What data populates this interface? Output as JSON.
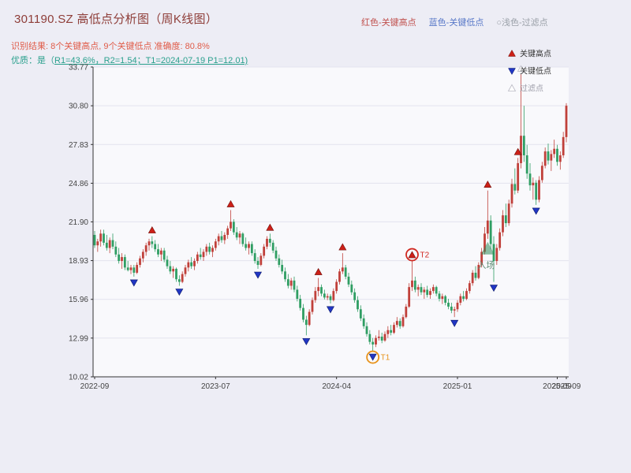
{
  "title": "301190.SZ 高低点分析图（周K线图）",
  "header_legend": [
    {
      "label": "红色-关键高点",
      "color": "#c0504d"
    },
    {
      "label": "蓝色-关键低点",
      "color": "#5878c8"
    },
    {
      "label": "○浅色-过滤点",
      "color": "#9aa0a8"
    }
  ],
  "subtitle1": "识别结果: 8个关键高点, 9个关键低点  准确度: 80.8%",
  "subtitle2_prefix": "优质：是（",
  "subtitle2_rest": "R1=43.6%，R2=1.54；T1=2024-07-19 P1=12.01)",
  "colors": {
    "title": "#8e3d38",
    "subtitle1": "#e05c49",
    "subtitle2": "#2aa08d",
    "background": "#ededf5",
    "plot_bg": "#f9f9fc",
    "axis": "#333333",
    "grid": "#e3e3ee",
    "tick_text": "#444444",
    "up": "#c0403a",
    "down": "#2f9e63"
  },
  "chart_data": {
    "type": "candlestick",
    "title": "301190.SZ 高低点分析图（周K线图）",
    "ylim": [
      10.02,
      33.77
    ],
    "y_ticks": [
      "33.77",
      "30.80",
      "27.83",
      "24.86",
      "21.90",
      "18.93",
      "15.96",
      "12.99",
      "10.02"
    ],
    "x_ticks": [
      {
        "label": "2022-09",
        "index": 0
      },
      {
        "label": "2023-07",
        "index": 40
      },
      {
        "label": "2024-04",
        "index": 80
      },
      {
        "label": "2025-01",
        "index": 120
      },
      {
        "label": "2025-09",
        "index": 153
      },
      {
        "label": "2025-09",
        "index": 156
      }
    ],
    "marker_colors": {
      "high": "#cc2018",
      "low": "#2136c4",
      "filtered": "#ffffff",
      "filtered_border": "#b9b9c4"
    },
    "legend": {
      "items": [
        {
          "label": "关键高点",
          "marker": "triangle-up",
          "color": "#cc2018",
          "text_color": "#333333"
        },
        {
          "label": "关键低点",
          "marker": "triangle-down",
          "color": "#2136c4",
          "text_color": "#333333"
        },
        {
          "label": "过滤点",
          "marker": "triangle-up-hollow",
          "color": "#ffffff",
          "border": "#b9b9c4",
          "text_color": "#a0a0ab"
        }
      ]
    },
    "candles": [
      [
        20.9,
        21.2,
        19.9,
        20.1
      ],
      [
        20.1,
        20.6,
        19.6,
        20.4
      ],
      [
        20.4,
        21.3,
        20.0,
        21.0
      ],
      [
        21.0,
        21.3,
        20.1,
        20.3
      ],
      [
        20.3,
        20.9,
        19.7,
        19.9
      ],
      [
        19.9,
        20.7,
        19.5,
        20.5
      ],
      [
        20.5,
        21.0,
        19.8,
        20.0
      ],
      [
        20.0,
        20.4,
        19.2,
        19.4
      ],
      [
        19.4,
        19.9,
        18.7,
        18.9
      ],
      [
        18.9,
        19.5,
        18.3,
        19.2
      ],
      [
        19.2,
        19.4,
        18.2,
        18.4
      ],
      [
        18.4,
        18.9,
        18.1,
        18.2
      ],
      [
        18.2,
        18.6,
        17.9,
        18.4
      ],
      [
        18.4,
        18.6,
        17.7,
        18.0
      ],
      [
        18.0,
        18.8,
        17.9,
        18.6
      ],
      [
        18.6,
        19.3,
        18.4,
        19.1
      ],
      [
        19.1,
        19.8,
        18.8,
        19.6
      ],
      [
        19.6,
        20.3,
        19.3,
        20.1
      ],
      [
        20.1,
        20.6,
        19.7,
        20.4
      ],
      [
        20.4,
        20.8,
        19.9,
        20.2
      ],
      [
        20.2,
        20.5,
        19.6,
        19.8
      ],
      [
        19.8,
        20.2,
        19.2,
        19.4
      ],
      [
        19.4,
        19.9,
        18.9,
        19.7
      ],
      [
        19.7,
        19.9,
        18.8,
        19.0
      ],
      [
        19.0,
        19.3,
        18.3,
        18.5
      ],
      [
        18.5,
        18.9,
        17.9,
        18.1
      ],
      [
        18.1,
        18.5,
        17.6,
        18.3
      ],
      [
        18.3,
        18.4,
        17.3,
        17.5
      ],
      [
        17.5,
        17.8,
        17.0,
        17.3
      ],
      [
        17.3,
        18.1,
        17.2,
        17.9
      ],
      [
        17.9,
        18.6,
        17.7,
        18.4
      ],
      [
        18.4,
        19.0,
        18.1,
        18.8
      ],
      [
        18.8,
        19.2,
        18.3,
        18.5
      ],
      [
        18.5,
        19.1,
        18.2,
        18.9
      ],
      [
        18.9,
        19.6,
        18.7,
        19.4
      ],
      [
        19.4,
        19.9,
        19.0,
        19.2
      ],
      [
        19.2,
        19.8,
        18.9,
        19.6
      ],
      [
        19.6,
        20.2,
        19.3,
        20.0
      ],
      [
        20.0,
        20.3,
        19.4,
        19.6
      ],
      [
        19.6,
        20.1,
        19.2,
        19.9
      ],
      [
        19.9,
        20.6,
        19.7,
        20.4
      ],
      [
        20.4,
        21.0,
        20.1,
        20.8
      ],
      [
        20.8,
        21.2,
        20.3,
        20.5
      ],
      [
        20.5,
        21.1,
        20.2,
        20.9
      ],
      [
        20.9,
        21.6,
        20.6,
        21.4
      ],
      [
        21.4,
        22.8,
        21.2,
        21.9
      ],
      [
        21.9,
        22.1,
        20.9,
        21.1
      ],
      [
        21.1,
        21.5,
        20.5,
        20.7
      ],
      [
        20.7,
        21.2,
        20.2,
        21.0
      ],
      [
        21.0,
        21.1,
        20.0,
        20.2
      ],
      [
        20.2,
        20.7,
        19.7,
        19.9
      ],
      [
        19.9,
        20.4,
        19.4,
        20.2
      ],
      [
        20.2,
        20.4,
        19.3,
        19.5
      ],
      [
        19.5,
        19.8,
        18.7,
        18.9
      ],
      [
        18.9,
        19.2,
        18.3,
        18.6
      ],
      [
        18.6,
        19.5,
        18.5,
        19.3
      ],
      [
        19.3,
        20.2,
        19.1,
        20.0
      ],
      [
        20.0,
        20.8,
        19.8,
        20.6
      ],
      [
        20.6,
        21.0,
        20.0,
        20.3
      ],
      [
        20.3,
        20.5,
        19.5,
        19.7
      ],
      [
        19.7,
        20.0,
        18.9,
        19.1
      ],
      [
        19.1,
        19.4,
        18.4,
        18.6
      ],
      [
        18.6,
        19.0,
        17.9,
        18.1
      ],
      [
        18.1,
        18.4,
        17.3,
        17.5
      ],
      [
        17.5,
        17.9,
        16.8,
        17.0
      ],
      [
        17.0,
        17.6,
        16.7,
        17.4
      ],
      [
        17.4,
        17.7,
        16.5,
        16.7
      ],
      [
        16.7,
        17.0,
        15.8,
        16.0
      ],
      [
        16.0,
        16.3,
        15.1,
        15.3
      ],
      [
        15.3,
        15.6,
        14.2,
        14.4
      ],
      [
        14.4,
        14.7,
        13.2,
        14.0
      ],
      [
        14.0,
        15.2,
        13.9,
        15.0
      ],
      [
        15.0,
        16.1,
        14.8,
        15.9
      ],
      [
        15.9,
        16.9,
        15.7,
        16.6
      ],
      [
        16.6,
        17.6,
        16.2,
        16.9
      ],
      [
        16.9,
        17.1,
        16.2,
        16.4
      ],
      [
        16.4,
        16.7,
        15.95,
        16.1
      ],
      [
        16.1,
        16.4,
        15.9,
        16.2
      ],
      [
        16.2,
        16.35,
        15.65,
        15.9
      ],
      [
        15.9,
        16.8,
        15.8,
        16.6
      ],
      [
        16.6,
        17.5,
        16.4,
        17.3
      ],
      [
        17.3,
        18.3,
        17.1,
        18.1
      ],
      [
        18.1,
        19.5,
        17.9,
        18.4
      ],
      [
        18.4,
        18.6,
        17.5,
        17.7
      ],
      [
        17.7,
        18.0,
        16.9,
        17.1
      ],
      [
        17.1,
        17.4,
        16.3,
        16.5
      ],
      [
        16.5,
        16.8,
        15.7,
        15.9
      ],
      [
        15.9,
        16.2,
        15.0,
        15.2
      ],
      [
        15.2,
        15.5,
        14.3,
        14.5
      ],
      [
        14.5,
        14.8,
        13.7,
        13.9
      ],
      [
        13.9,
        14.2,
        13.1,
        13.3
      ],
      [
        13.3,
        13.6,
        12.5,
        12.7
      ],
      [
        12.7,
        13.0,
        12.01,
        12.5
      ],
      [
        12.5,
        13.2,
        12.3,
        13.0
      ],
      [
        13.0,
        13.6,
        12.8,
        13.1
      ],
      [
        13.1,
        13.4,
        12.6,
        12.8
      ],
      [
        12.8,
        13.5,
        12.7,
        13.3
      ],
      [
        13.3,
        13.9,
        13.0,
        13.6
      ],
      [
        13.6,
        14.0,
        13.2,
        13.4
      ],
      [
        13.4,
        14.2,
        13.3,
        14.0
      ],
      [
        14.0,
        14.6,
        13.8,
        14.3
      ],
      [
        14.3,
        14.5,
        13.7,
        13.9
      ],
      [
        13.9,
        14.8,
        13.8,
        14.6
      ],
      [
        14.6,
        15.6,
        14.5,
        15.4
      ],
      [
        15.4,
        17.2,
        15.3,
        16.9
      ],
      [
        16.9,
        18.9,
        16.6,
        17.4
      ],
      [
        17.4,
        17.7,
        16.5,
        16.7
      ],
      [
        16.7,
        17.1,
        16.2,
        16.9
      ],
      [
        16.9,
        17.2,
        16.3,
        16.5
      ],
      [
        16.5,
        16.9,
        16.0,
        16.7
      ],
      [
        16.7,
        17.0,
        16.1,
        16.3
      ],
      [
        16.3,
        16.8,
        16.0,
        16.6
      ],
      [
        16.6,
        17.1,
        16.4,
        16.9
      ],
      [
        16.9,
        17.0,
        16.2,
        16.4
      ],
      [
        16.4,
        16.6,
        15.8,
        16.0
      ],
      [
        16.0,
        16.4,
        15.6,
        16.2
      ],
      [
        16.2,
        16.3,
        15.5,
        15.7
      ],
      [
        15.7,
        16.0,
        15.2,
        15.4
      ],
      [
        15.4,
        15.7,
        14.9,
        15.1
      ],
      [
        15.1,
        15.4,
        14.6,
        15.2
      ],
      [
        15.2,
        15.9,
        15.0,
        15.7
      ],
      [
        15.7,
        16.4,
        15.5,
        16.2
      ],
      [
        16.2,
        16.6,
        15.8,
        16.0
      ],
      [
        16.0,
        16.8,
        15.9,
        16.6
      ],
      [
        16.6,
        17.4,
        16.4,
        17.2
      ],
      [
        17.2,
        18.2,
        17.0,
        18.0
      ],
      [
        18.0,
        18.5,
        17.4,
        17.6
      ],
      [
        17.6,
        18.8,
        17.5,
        18.6
      ],
      [
        18.6,
        19.9,
        18.4,
        19.6
      ],
      [
        19.6,
        21.5,
        19.4,
        21.0
      ],
      [
        21.0,
        24.3,
        20.6,
        22.0
      ],
      [
        22.0,
        22.4,
        19.8,
        20.2
      ],
      [
        20.2,
        20.8,
        17.3,
        18.9
      ],
      [
        18.9,
        20.2,
        18.6,
        19.9
      ],
      [
        19.9,
        21.4,
        19.7,
        21.1
      ],
      [
        21.1,
        22.8,
        20.8,
        22.4
      ],
      [
        22.4,
        23.3,
        21.5,
        21.8
      ],
      [
        21.8,
        23.6,
        21.6,
        23.3
      ],
      [
        23.3,
        25.2,
        23.0,
        24.8
      ],
      [
        24.8,
        26.0,
        24.0,
        24.3
      ],
      [
        24.3,
        26.8,
        24.1,
        26.4
      ],
      [
        26.4,
        33.2,
        26.0,
        28.5
      ],
      [
        28.5,
        30.8,
        26.5,
        27.0
      ],
      [
        27.0,
        27.8,
        25.2,
        25.6
      ],
      [
        25.6,
        26.4,
        24.3,
        24.7
      ],
      [
        24.7,
        25.3,
        23.6,
        24.9
      ],
      [
        24.9,
        25.1,
        23.2,
        23.6
      ],
      [
        23.6,
        25.4,
        23.4,
        25.1
      ],
      [
        25.1,
        26.5,
        24.9,
        26.2
      ],
      [
        26.2,
        27.6,
        26.0,
        27.3
      ],
      [
        27.3,
        27.9,
        26.3,
        26.6
      ],
      [
        26.6,
        27.4,
        25.8,
        27.1
      ],
      [
        27.1,
        28.2,
        26.8,
        27.5
      ],
      [
        27.5,
        27.8,
        26.2,
        26.5
      ],
      [
        26.5,
        27.3,
        25.9,
        27.0
      ],
      [
        27.0,
        28.8,
        26.8,
        28.4
      ],
      [
        28.4,
        31.0,
        28.0,
        30.8
      ]
    ],
    "markers": {
      "highs": [
        19,
        45,
        58,
        74,
        82,
        105,
        130,
        140
      ],
      "lows": [
        13,
        28,
        54,
        70,
        78,
        92,
        119,
        132,
        146
      ],
      "filtered": [
        141
      ]
    },
    "annotations": {
      "t1": {
        "label": "T1",
        "index": 92,
        "color": "#e8921a"
      },
      "t2": {
        "label": "T2",
        "index": 105,
        "color": "#d02a22"
      },
      "entry": {
        "label": "入场",
        "index": 130,
        "price": 19.4,
        "color": "#2e8b57",
        "text_color": "#5f8d75"
      }
    }
  }
}
